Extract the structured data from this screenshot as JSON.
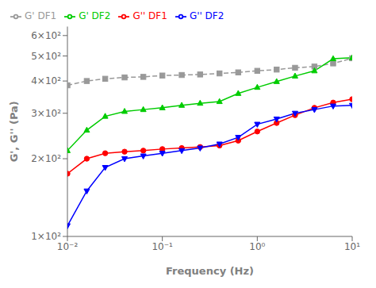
{
  "chart_data": {
    "type": "line",
    "xlabel": "Frequency (Hz)",
    "ylabel": "G', G'' (Pa)",
    "log": true,
    "grid": false,
    "legend": "upper left",
    "xlim": [
      0.01,
      10
    ],
    "ylim": [
      100,
      650
    ],
    "xticks": [
      {
        "value": 0.01,
        "label": "10⁻²"
      },
      {
        "value": 0.1,
        "label": "10⁻¹"
      },
      {
        "value": 1,
        "label": "10⁰"
      },
      {
        "value": 10,
        "label": "10¹"
      }
    ],
    "yticks": [
      {
        "value": 100,
        "label": "1×10²"
      },
      {
        "value": 200,
        "label": "2×10²"
      },
      {
        "value": 300,
        "label": "3×10²"
      },
      {
        "value": 400,
        "label": "4×10²"
      },
      {
        "value": 500,
        "label": "5×10²"
      },
      {
        "value": 600,
        "label": "6×10²"
      }
    ],
    "x": [
      0.01,
      0.016,
      0.025,
      0.04,
      0.063,
      0.1,
      0.16,
      0.25,
      0.4,
      0.63,
      1.0,
      1.6,
      2.5,
      4.0,
      6.3,
      10.0
    ],
    "series": [
      {
        "name": "G' DF1",
        "color": "#999999",
        "marker": "square",
        "line_style": "dashed",
        "values": [
          385,
          400,
          408,
          413,
          415,
          420,
          422,
          424,
          428,
          432,
          438,
          443,
          450,
          455,
          468,
          490
        ]
      },
      {
        "name": "G'' DF1",
        "color": "#ff0000",
        "marker": "circle",
        "line_style": "solid",
        "values": [
          175,
          200,
          210,
          213,
          215,
          218,
          220,
          222,
          225,
          235,
          255,
          275,
          295,
          315,
          330,
          340
        ]
      },
      {
        "name": "G' DF2",
        "color": "#00cc00",
        "marker": "triangle",
        "line_style": "solid",
        "values": [
          215,
          258,
          292,
          305,
          310,
          315,
          322,
          328,
          333,
          358,
          378,
          398,
          418,
          438,
          488,
          492
        ]
      },
      {
        "name": "G'' DF2",
        "color": "#0000ff",
        "marker": "triangle-down",
        "line_style": "solid",
        "values": [
          110,
          150,
          185,
          200,
          205,
          210,
          215,
          220,
          228,
          242,
          272,
          285,
          300,
          310,
          320,
          322
        ]
      }
    ]
  }
}
